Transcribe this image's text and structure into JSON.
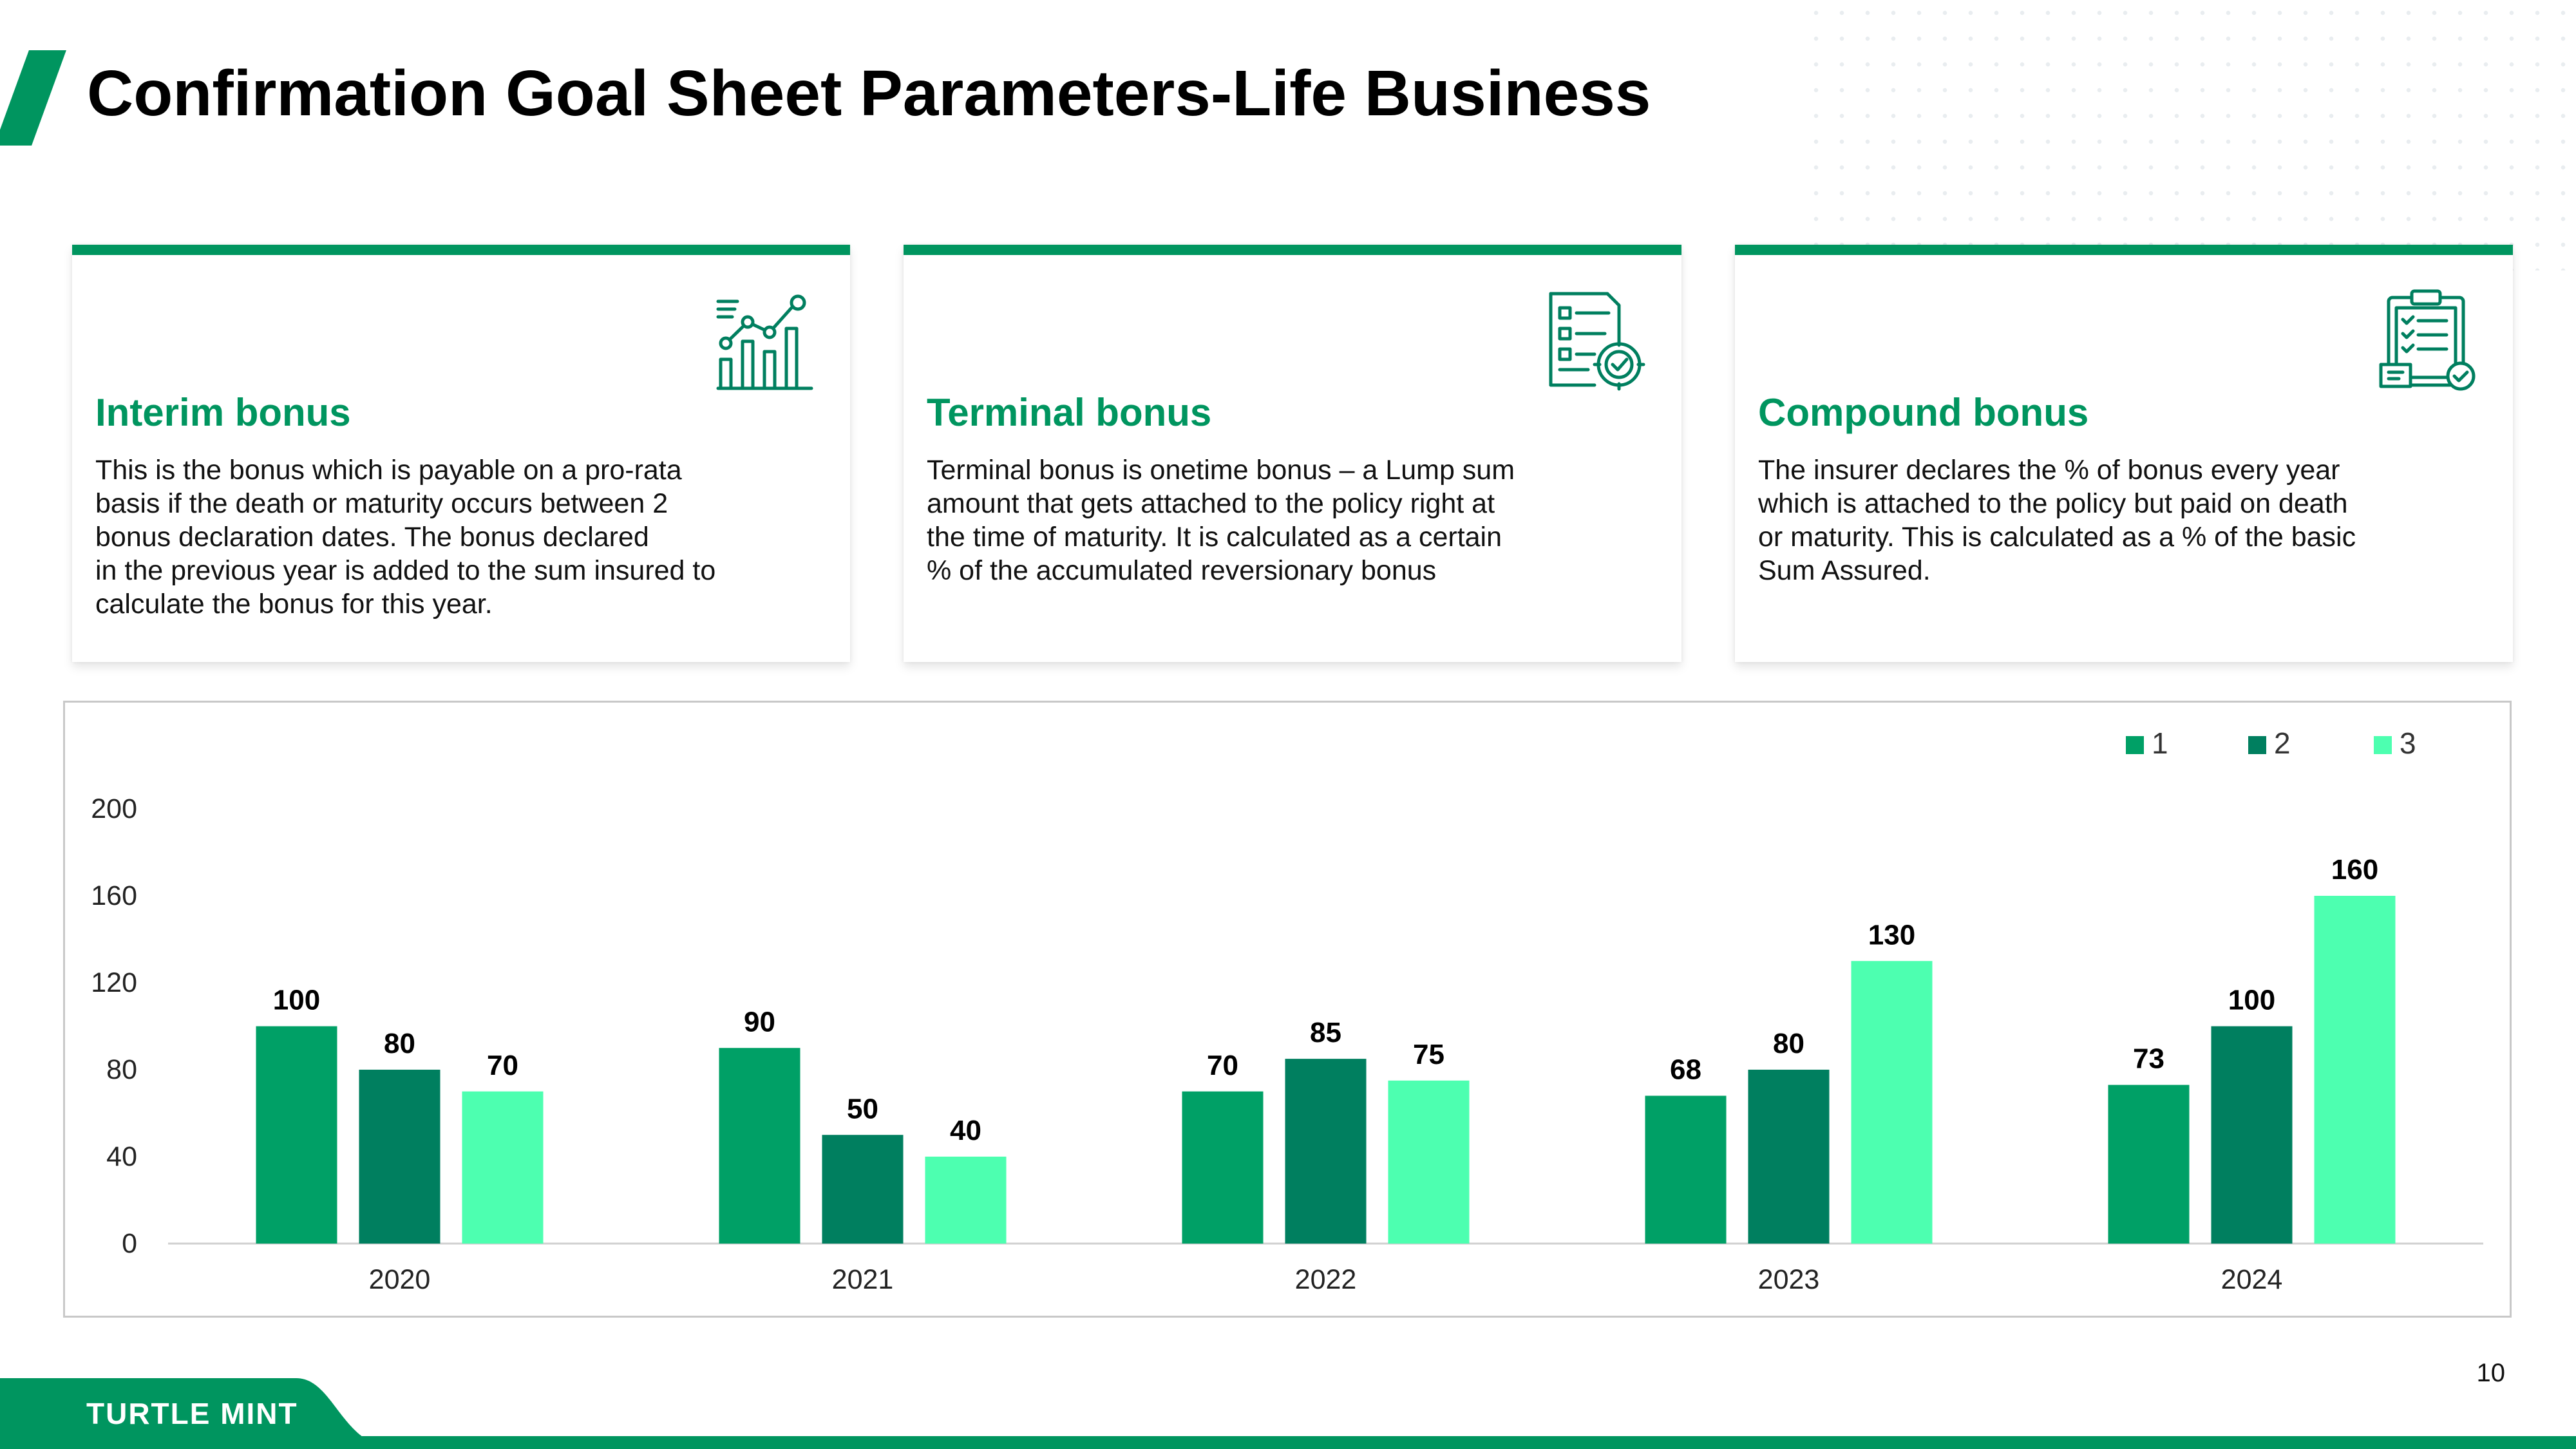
{
  "slide": {
    "title": "Confirmation Goal Sheet Parameters-Life Business",
    "page_number": "10",
    "brand": "TURTLE MINT",
    "accent_color": "#00955f"
  },
  "cards": [
    {
      "icon": "growth-chart-icon",
      "title": "Interim bonus",
      "body": "This is the bonus which is payable on a pro-rata\nbasis if the death or maturity occurs between 2\nbonus declaration dates. The bonus declared\nin the previous year is added to the sum insured to\ncalculate the bonus for this year."
    },
    {
      "icon": "document-settings-icon",
      "title": "Terminal bonus",
      "body": "Terminal bonus is onetime bonus – a Lump sum\namount that gets attached to the policy right at\nthe time of maturity. It is calculated as a certain\n% of the accumulated reversionary bonus"
    },
    {
      "icon": "clipboard-checklist-icon",
      "title": "Compound bonus",
      "body": "The insurer declares the % of bonus every year\nwhich is attached to the  policy but paid on death\nor maturity. This is calculated as a % of the basic\nSum Assured."
    }
  ],
  "chart_data": {
    "type": "bar",
    "categories": [
      "2020",
      "2021",
      "2022",
      "2023",
      "2024"
    ],
    "series": [
      {
        "name": "1",
        "values": [
          100,
          90,
          70,
          68,
          73
        ],
        "color": "#00a066"
      },
      {
        "name": "2",
        "values": [
          80,
          50,
          85,
          80,
          100
        ],
        "color": "#007f5f"
      },
      {
        "name": "3",
        "values": [
          70,
          40,
          75,
          130,
          160
        ],
        "color": "#4dffb0"
      }
    ],
    "yticks": [
      0,
      40,
      80,
      120,
      160,
      200
    ],
    "ylim": [
      0,
      200
    ],
    "grid": false,
    "legend_position": "top-right",
    "data_labels": true
  }
}
